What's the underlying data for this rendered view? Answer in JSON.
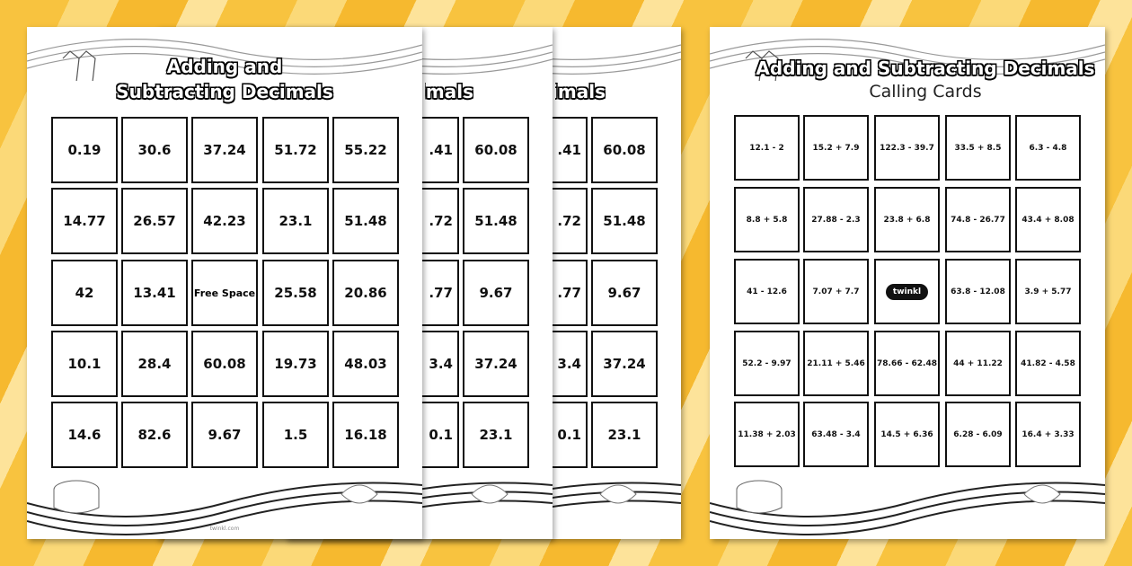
{
  "bingo_sheet": {
    "title_line1": "Adding and",
    "title_line2": "Subtracting Decimals",
    "free_space": "Free Space",
    "rows": [
      [
        "0.19",
        "30.6",
        "37.24",
        "51.72",
        "55.22"
      ],
      [
        "14.77",
        "26.57",
        "42.23",
        "23.1",
        "51.48"
      ],
      [
        "42",
        "13.41",
        "Free Space",
        "25.58",
        "20.86"
      ],
      [
        "10.1",
        "28.4",
        "60.08",
        "19.73",
        "48.03"
      ],
      [
        "14.6",
        "82.6",
        "9.67",
        "1.5",
        "16.18"
      ]
    ],
    "footer": "twinkl.com"
  },
  "stacked_sheets": [
    {
      "title": "Subtracting Decimals",
      "rows": [
        [
          ".41",
          "60.08"
        ],
        [
          ".72",
          "51.48"
        ],
        [
          ".77",
          "9.67"
        ],
        [
          "3.4",
          "37.24"
        ],
        [
          "0.1",
          "23.1"
        ]
      ]
    },
    {
      "title": "Subtracting Decimals",
      "rows": [
        [
          ".41",
          "60.08"
        ],
        [
          ".72",
          "51.48"
        ],
        [
          ".77",
          "9.67"
        ],
        [
          "3.4",
          "37.24"
        ],
        [
          "0.1",
          "23.1"
        ]
      ]
    }
  ],
  "calling_cards": {
    "title": "Adding and Subtracting Decimals",
    "subtitle": "Calling Cards",
    "logo": "twinkl",
    "rows": [
      [
        "12.1 - 2",
        "15.2 + 7.9",
        "122.3 - 39.7",
        "33.5 + 8.5",
        "6.3 - 4.8"
      ],
      [
        "8.8 + 5.8",
        "27.88 - 2.3",
        "23.8 + 6.8",
        "74.8 - 26.77",
        "43.4 + 8.08"
      ],
      [
        "41 - 12.6",
        "7.07 + 7.7",
        "twinkl",
        "63.8 - 12.08",
        "3.9 + 5.77"
      ],
      [
        "52.2 - 9.97",
        "21.11 + 5.46",
        "78.66 - 62.48",
        "44 + 11.22",
        "41.82 - 4.58"
      ],
      [
        "11.38 + 2.03",
        "63.48 - 3.4",
        "14.5 + 6.36",
        "6.28 - 6.09",
        "16.4 + 3.33"
      ]
    ]
  },
  "colors": {
    "background": "#f8c33f",
    "paper": "#ffffff",
    "ink": "#111111"
  }
}
